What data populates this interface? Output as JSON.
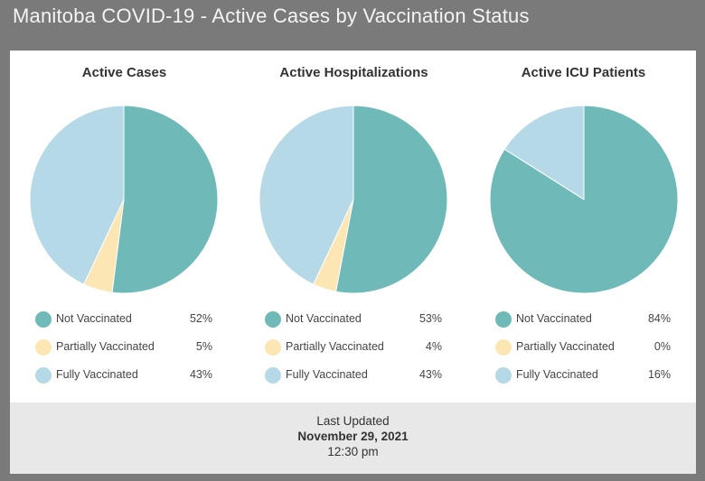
{
  "header": {
    "title": "Manitoba COVID-19 - Active Cases by Vaccination Status"
  },
  "colors": {
    "not_vaccinated": "#6fbab8",
    "partially_vaccinated": "#fbe6b4",
    "fully_vaccinated": "#b5d9e7"
  },
  "panels": [
    {
      "title": "Active Cases",
      "legend": [
        {
          "label": "Not Vaccinated",
          "value": "52%"
        },
        {
          "label": "Partially Vaccinated",
          "value": "5%"
        },
        {
          "label": "Fully Vaccinated",
          "value": "43%"
        }
      ]
    },
    {
      "title": "Active Hospitalizations",
      "legend": [
        {
          "label": "Not Vaccinated",
          "value": "53%"
        },
        {
          "label": "Partially Vaccinated",
          "value": "4%"
        },
        {
          "label": "Fully Vaccinated",
          "value": "43%"
        }
      ]
    },
    {
      "title": "Active ICU Patients",
      "legend": [
        {
          "label": "Not Vaccinated",
          "value": "84%"
        },
        {
          "label": "Partially Vaccinated",
          "value": "0%"
        },
        {
          "label": "Fully Vaccinated",
          "value": "16%"
        }
      ]
    }
  ],
  "footer": {
    "label": "Last Updated",
    "date": "November 29, 2021",
    "time": "12:30 pm"
  },
  "chart_data": [
    {
      "type": "pie",
      "title": "Active Cases",
      "categories": [
        "Not Vaccinated",
        "Partially Vaccinated",
        "Fully Vaccinated"
      ],
      "values": [
        52,
        5,
        43
      ]
    },
    {
      "type": "pie",
      "title": "Active Hospitalizations",
      "categories": [
        "Not Vaccinated",
        "Partially Vaccinated",
        "Fully Vaccinated"
      ],
      "values": [
        53,
        4,
        43
      ]
    },
    {
      "type": "pie",
      "title": "Active ICU Patients",
      "categories": [
        "Not Vaccinated",
        "Partially Vaccinated",
        "Fully Vaccinated"
      ],
      "values": [
        84,
        0,
        16
      ]
    }
  ]
}
